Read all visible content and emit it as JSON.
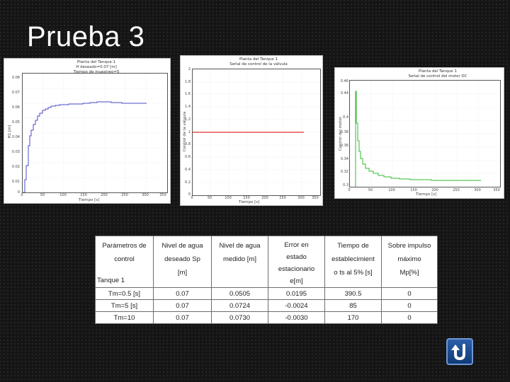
{
  "slide": {
    "title": "Prueba 3"
  },
  "plots": [
    {
      "title_lines": [
        "Planta del Tanque 1",
        "H deseado=0.07 [m]",
        "Tiempo de muestreo=5"
      ],
      "xlabel": "Tiempo [s]",
      "ylabel": "H1 [m]",
      "yticks": [
        "0.08",
        "0.07",
        "0.06",
        "0.05",
        "0.04",
        "0.03",
        "0.02",
        "0.01",
        "0"
      ],
      "xticks": [
        "0",
        "50",
        "100",
        "150",
        "200",
        "250",
        "300",
        "350"
      ],
      "line_color": "#4a4ac8"
    },
    {
      "title_lines": [
        "Planta del Tanque 1",
        "Señal de control de la válvula"
      ],
      "xlabel": "Tiempo [s]",
      "ylabel": "Control de la válvula",
      "yticks": [
        "2",
        "1.8",
        "1.6",
        "1.4",
        "1.2",
        "1",
        "0.8",
        "0.6",
        "0.4",
        "0.2",
        "0"
      ],
      "xticks": [
        "0",
        "50",
        "100",
        "150",
        "200",
        "250",
        "300",
        "350"
      ],
      "line_color": "#e03030"
    },
    {
      "title_lines": [
        "Planta del Tanque 1",
        "Señal de control del motor DC"
      ],
      "xlabel": "Tiempo [s]",
      "ylabel": "Control del motor",
      "yticks": [
        "0.46",
        "0.44",
        "0.4",
        "0.38",
        "0.36",
        "0.34",
        "0.32",
        "0.3"
      ],
      "xticks": [
        "0",
        "50",
        "100",
        "150",
        "200",
        "250",
        "300",
        "350"
      ],
      "line_color": "#33b833"
    }
  ],
  "table": {
    "headers": [
      [
        "Parámetros de",
        "control",
        "",
        "Tanque 1"
      ],
      [
        "Nivel de agua",
        "deseado Sp",
        "[m]"
      ],
      [
        "Nivel de agua",
        "medido [m]"
      ],
      [
        "Error en",
        "estado",
        "estacionario",
        "e[m]"
      ],
      [
        "Tiempo de",
        "establecimient",
        "o ts al 5% [s]"
      ],
      [
        "Sobre impulso",
        "máximo",
        "Mp[%]"
      ]
    ],
    "rows": [
      [
        "Tm=0.5 [s]",
        "0.07",
        "0.0505",
        "0.0195",
        "390.5",
        "0"
      ],
      [
        "Tm=5 [s]",
        "0.07",
        "0.0724",
        "-0.0024",
        "85",
        "0"
      ],
      [
        "Tm=10",
        "0.07",
        "0.0730",
        "-0.0030",
        "170",
        "0"
      ]
    ]
  },
  "nav": {
    "back_icon": "u-turn-back-arrow-icon"
  }
}
